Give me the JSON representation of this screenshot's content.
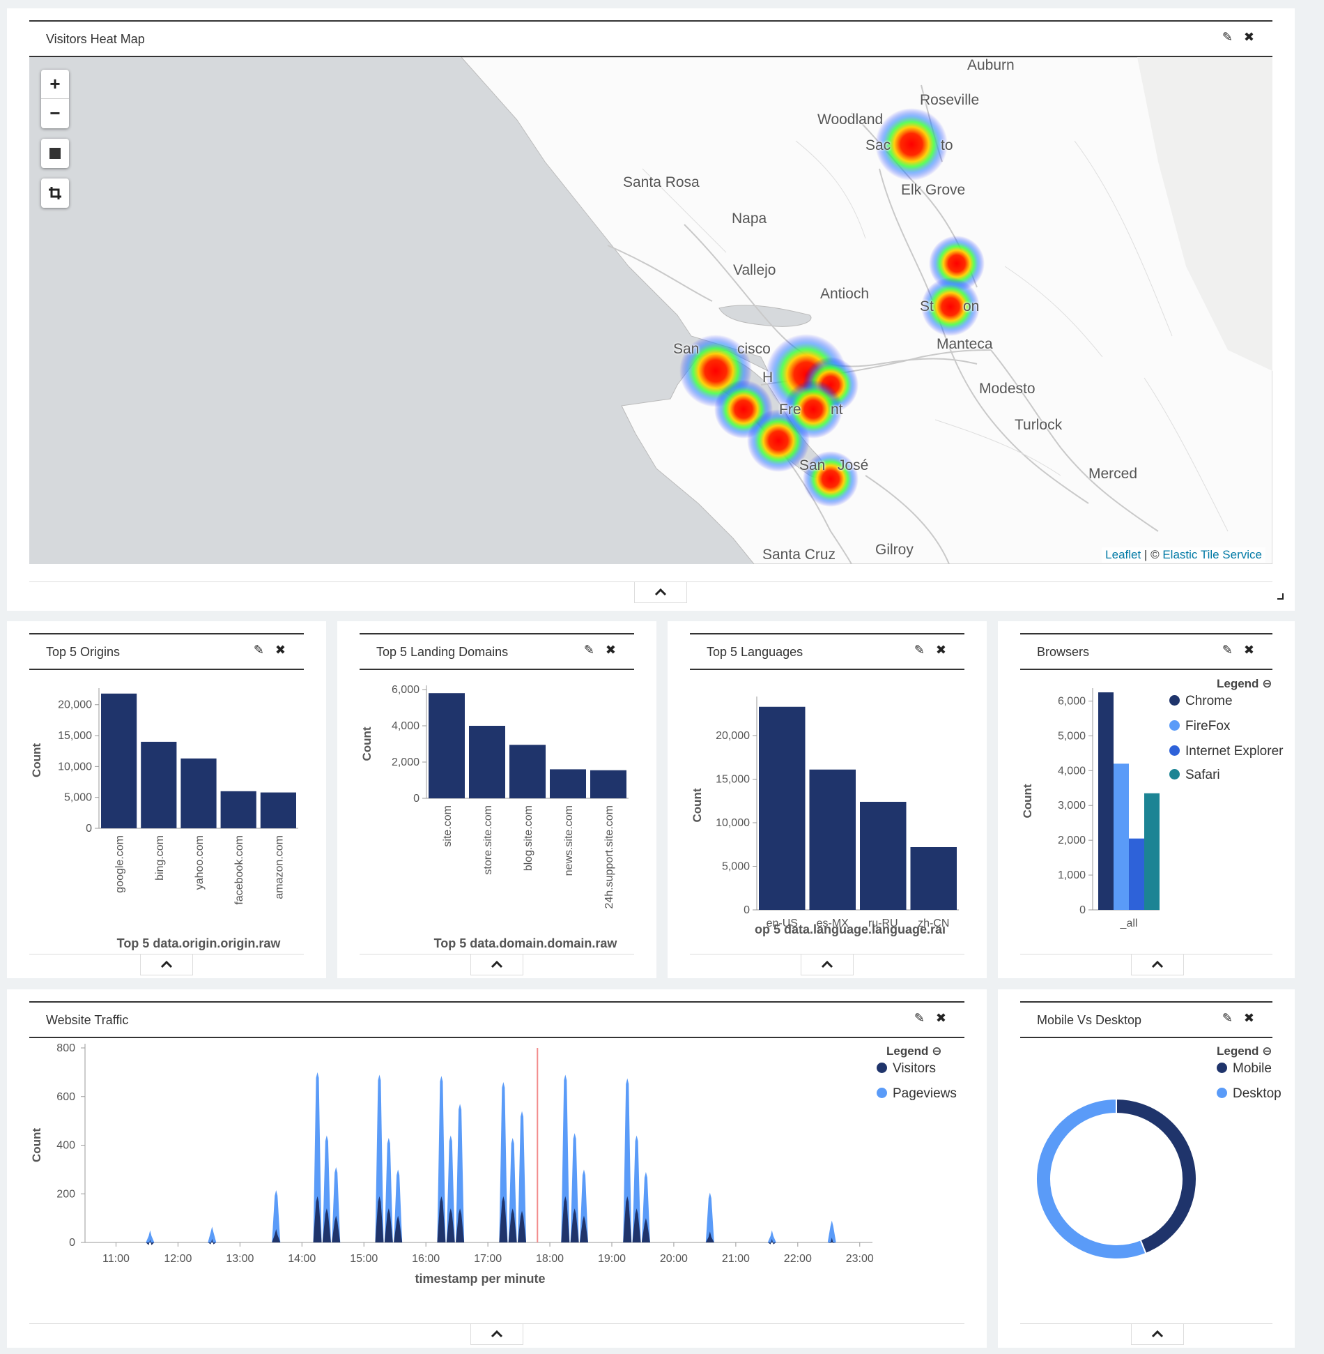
{
  "heatmap_panel": {
    "title": "Visitors Heat Map",
    "zoom_in": "+",
    "zoom_out": "−",
    "attribution_leaflet": "Leaflet",
    "attribution_sep": " | © ",
    "attribution_tiles": "Elastic Tile Service",
    "cities": [
      "Auburn",
      "Roseville",
      "Woodland",
      "Sac",
      "to",
      "Elk Grove",
      "Santa Rosa",
      "Napa",
      "Vallejo",
      "Antioch",
      "St",
      "on",
      "Manteca",
      "San",
      "cisco",
      "H",
      "Modesto",
      "Fre",
      "nt",
      "Turlock",
      "San",
      "José",
      "Merced",
      "Santa Cruz",
      "Gilroy"
    ]
  },
  "origins_panel": {
    "title": "Top 5 Origins",
    "chart_data": {
      "type": "bar",
      "categories": [
        "google.com",
        "bing.com",
        "yahoo.com",
        "facebook.com",
        "amazon.com"
      ],
      "values": [
        21800,
        14000,
        11300,
        6000,
        5800
      ],
      "xlabel": "Top 5 data.origin.origin.raw",
      "ylabel": "Count",
      "ylim": [
        0,
        22000
      ],
      "yticks": [
        0,
        5000,
        10000,
        15000,
        20000
      ],
      "ytick_labels": [
        "0",
        "5,000",
        "10,000",
        "15,000",
        "20,000"
      ],
      "color": "#1f346b"
    }
  },
  "domains_panel": {
    "title": "Top 5 Landing Domains",
    "chart_data": {
      "type": "bar",
      "categories": [
        "site.com",
        "store.site.com",
        "blog.site.com",
        "news.site.com",
        "24h.support.site.com"
      ],
      "values": [
        5800,
        4000,
        2950,
        1600,
        1550
      ],
      "xlabel": "Top 5 data.domain.domain.raw",
      "ylabel": "Count",
      "ylim": [
        0,
        6000
      ],
      "yticks": [
        0,
        2000,
        4000,
        6000
      ],
      "ytick_labels": [
        "0",
        "2,000",
        "4,000",
        "6,000"
      ],
      "color": "#1f346b"
    }
  },
  "languages_panel": {
    "title": "Top 5 Languages",
    "chart_data": {
      "type": "bar",
      "categories": [
        "en-US",
        "es-MX",
        "ru-RU",
        "zh-CN"
      ],
      "values": [
        23300,
        16100,
        12400,
        7200
      ],
      "xlabel": "op 5 data.language.language.raı",
      "ylabel": "Count",
      "ylim": [
        0,
        24000
      ],
      "yticks": [
        0,
        5000,
        10000,
        15000,
        20000
      ],
      "ytick_labels": [
        "0",
        "5,000",
        "10,000",
        "15,000",
        "20,000"
      ],
      "color": "#1f346b"
    }
  },
  "browsers_panel": {
    "title": "Browsers",
    "legend_title": "Legend",
    "chart_data": {
      "type": "bar",
      "categories": [
        "_all"
      ],
      "series": [
        {
          "name": "Chrome",
          "values": [
            6250
          ],
          "color": "#1f346b"
        },
        {
          "name": "FireFox",
          "values": [
            4200
          ],
          "color": "#5a9bf8"
        },
        {
          "name": "Internet Explorer",
          "values": [
            2050
          ],
          "color": "#2e62d9"
        },
        {
          "name": "Safari",
          "values": [
            3350
          ],
          "color": "#1c8494"
        }
      ],
      "ylabel": "Count",
      "ylim": [
        0,
        6250
      ],
      "yticks": [
        0,
        1000,
        2000,
        3000,
        4000,
        5000,
        6000
      ],
      "ytick_labels": [
        "0",
        "1,000",
        "2,000",
        "3,000",
        "4,000",
        "5,000",
        "6,000"
      ]
    }
  },
  "traffic_panel": {
    "title": "Website Traffic",
    "legend_title": "Legend",
    "chart_data": {
      "type": "area",
      "xlabel": "timestamp per minute",
      "ylabel": "Count",
      "ylim": [
        0,
        800
      ],
      "yticks": [
        0,
        200,
        400,
        600,
        800
      ],
      "ytick_labels": [
        "0",
        "200",
        "400",
        "600",
        "800"
      ],
      "xlim": [
        "10:30",
        "23:15"
      ],
      "xticks": [
        "11:00",
        "12:00",
        "13:00",
        "14:00",
        "15:00",
        "16:00",
        "17:00",
        "18:00",
        "19:00",
        "20:00",
        "21:00",
        "22:00",
        "23:00"
      ],
      "marker_time": "17:48",
      "series": [
        {
          "name": "Visitors",
          "color": "#1f346b",
          "peaks": [
            [
              "11:33",
              12
            ],
            [
              "12:33",
              15
            ],
            [
              "13:35",
              55
            ],
            [
              "14:15",
              190
            ],
            [
              "14:24",
              140
            ],
            [
              "14:33",
              110
            ],
            [
              "15:15",
              190
            ],
            [
              "15:24",
              140
            ],
            [
              "15:33",
              110
            ],
            [
              "16:15",
              190
            ],
            [
              "16:24",
              140
            ],
            [
              "16:33",
              140
            ],
            [
              "17:15",
              190
            ],
            [
              "17:24",
              140
            ],
            [
              "17:33",
              130
            ],
            [
              "18:15",
              190
            ],
            [
              "18:24",
              140
            ],
            [
              "18:33",
              110
            ],
            [
              "19:15",
              190
            ],
            [
              "19:24",
              140
            ],
            [
              "19:33",
              100
            ],
            [
              "20:35",
              45
            ],
            [
              "21:35",
              15
            ],
            [
              "22:33",
              20
            ]
          ]
        },
        {
          "name": "Pageviews",
          "color": "#5a9bf8",
          "peaks": [
            [
              "11:33",
              50
            ],
            [
              "12:33",
              65
            ],
            [
              "13:35",
              215
            ],
            [
              "14:15",
              700
            ],
            [
              "14:24",
              440
            ],
            [
              "14:33",
              310
            ],
            [
              "15:15",
              690
            ],
            [
              "15:24",
              430
            ],
            [
              "15:33",
              300
            ],
            [
              "16:15",
              685
            ],
            [
              "16:24",
              440
            ],
            [
              "16:33",
              570
            ],
            [
              "17:15",
              660
            ],
            [
              "17:24",
              430
            ],
            [
              "17:33",
              540
            ],
            [
              "18:15",
              690
            ],
            [
              "18:24",
              450
            ],
            [
              "18:33",
              300
            ],
            [
              "19:15",
              675
            ],
            [
              "19:24",
              440
            ],
            [
              "19:33",
              290
            ],
            [
              "20:35",
              205
            ],
            [
              "21:35",
              50
            ],
            [
              "22:33",
              90
            ]
          ]
        }
      ]
    }
  },
  "device_panel": {
    "title": "Mobile Vs Desktop",
    "legend_title": "Legend",
    "chart_data": {
      "type": "pie",
      "donut": true,
      "slices": [
        {
          "name": "Mobile",
          "value": 44,
          "color": "#1f346b"
        },
        {
          "name": "Desktop",
          "value": 56,
          "color": "#5a9bf8"
        }
      ]
    }
  }
}
